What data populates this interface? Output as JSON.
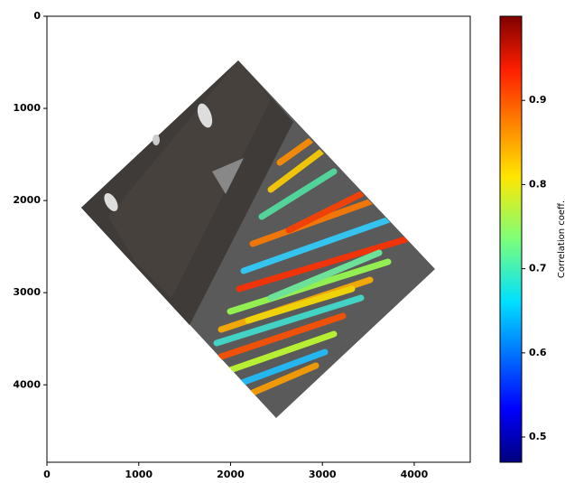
{
  "chart_data": {
    "type": "image",
    "xlim": [
      0,
      4610
    ],
    "ylim": [
      4840,
      0
    ],
    "xticks": [
      0,
      1000,
      2000,
      3000,
      4000
    ],
    "yticks": [
      0,
      1000,
      2000,
      3000,
      4000
    ],
    "colorbar": {
      "label": "Correlation coeff.",
      "lim": [
        0.47,
        1.0
      ],
      "ticks": [
        0.5,
        0.6,
        0.7,
        0.8,
        0.9
      ],
      "colormap": "jet"
    }
  }
}
